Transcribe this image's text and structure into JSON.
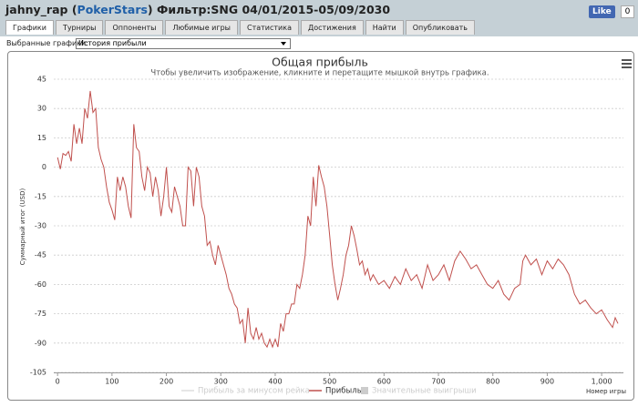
{
  "header": {
    "title_start": "jahny_rap (",
    "site": "PokerStars",
    "title_end": ") Фильтр:SNG 04/01/2015-05/09/2030",
    "like": "Like",
    "like_count": 0
  },
  "tabs": [
    "Графики",
    "Турниры",
    "Оппоненты",
    "Любимые игры",
    "Статистика",
    "Достижения",
    "Найти",
    "Опубликовать"
  ],
  "selector": {
    "label": "Выбранные графики:",
    "value": "История прибыли"
  },
  "chart_data": {
    "type": "line",
    "title": "Общая прибыль",
    "subtitle": "Чтобы увеличить изображение, кликните и перетащите мышкой внутрь графика.",
    "x_label": "Номер игры",
    "y_label": "Суммарный итог (USD)",
    "xlim": [
      -7,
      1040
    ],
    "ylim": [
      -105,
      45
    ],
    "xticks": [
      0,
      100,
      200,
      300,
      400,
      500,
      600,
      700,
      800,
      900,
      {
        "value": 1000,
        "label": "1,000"
      }
    ],
    "yticks": [
      -105,
      -90,
      -75,
      -60,
      -45,
      -30,
      -15,
      0,
      15,
      30,
      45
    ],
    "grid": true,
    "x": [
      0,
      5,
      10,
      15,
      20,
      25,
      30,
      35,
      40,
      45,
      50,
      55,
      60,
      65,
      70,
      75,
      80,
      85,
      90,
      95,
      100,
      105,
      110,
      115,
      120,
      125,
      130,
      135,
      140,
      145,
      150,
      155,
      160,
      165,
      170,
      175,
      180,
      185,
      190,
      195,
      200,
      205,
      210,
      215,
      220,
      225,
      230,
      235,
      240,
      245,
      250,
      255,
      260,
      265,
      270,
      275,
      280,
      285,
      290,
      295,
      300,
      305,
      310,
      315,
      320,
      325,
      330,
      335,
      340,
      345,
      350,
      355,
      360,
      365,
      370,
      375,
      380,
      385,
      390,
      395,
      400,
      405,
      410,
      415,
      420,
      425,
      430,
      435,
      440,
      445,
      450,
      455,
      460,
      465,
      470,
      475,
      480,
      485,
      490,
      495,
      500,
      505,
      510,
      515,
      520,
      525,
      530,
      535,
      540,
      545,
      550,
      555,
      560,
      565,
      570,
      575,
      580,
      590,
      600,
      610,
      620,
      630,
      640,
      650,
      660,
      670,
      680,
      690,
      700,
      710,
      720,
      730,
      740,
      750,
      760,
      770,
      780,
      790,
      800,
      810,
      820,
      830,
      840,
      850,
      855,
      860,
      870,
      880,
      890,
      900,
      910,
      920,
      930,
      940,
      950,
      960,
      970,
      980,
      990,
      1000,
      1010,
      1020,
      1025,
      1030
    ],
    "series": [
      {
        "name": "Прибыль",
        "color": "#c0504d",
        "values": [
          5,
          -1,
          7,
          6,
          8,
          3,
          22,
          12,
          20,
          12,
          30,
          25,
          39,
          28,
          30,
          10,
          4,
          0,
          -10,
          -18,
          -22,
          -27,
          -5,
          -12,
          -5,
          -10,
          -20,
          -26,
          22,
          10,
          8,
          -5,
          -12,
          0,
          -3,
          -15,
          -5,
          -12,
          -25,
          -15,
          0,
          -20,
          -23,
          -10,
          -15,
          -20,
          -30,
          -30,
          0,
          -2,
          -20,
          0,
          -5,
          -20,
          -25,
          -40,
          -38,
          -45,
          -50,
          -40,
          -45,
          -50,
          -55,
          -62,
          -65,
          -70,
          -72,
          -80,
          -78,
          -90,
          -72,
          -85,
          -88,
          -82,
          -88,
          -85,
          -90,
          -92,
          -88,
          -92,
          -88,
          -92,
          -80,
          -84,
          -75,
          -75,
          -70,
          -70,
          -60,
          -62,
          -55,
          -45,
          -25,
          -30,
          -5,
          -20,
          1,
          -5,
          -10,
          -20,
          -35,
          -50,
          -60,
          -68,
          -62,
          -55,
          -45,
          -40,
          -30,
          -35,
          -42,
          -50,
          -48,
          -55,
          -52,
          -58,
          -55,
          -60,
          -58,
          -62,
          -56,
          -60,
          -52,
          -58,
          -55,
          -62,
          -50,
          -58,
          -55,
          -50,
          -58,
          -48,
          -43,
          -47,
          -52,
          -50,
          -55,
          -60,
          -62,
          -58,
          -65,
          -68,
          -62,
          -60,
          -48,
          -45,
          -50,
          -47,
          -55,
          -48,
          -52,
          -47,
          -50,
          -55,
          -65,
          -70,
          -68,
          -72,
          -75,
          -73,
          -78,
          -82,
          -77,
          -80
        ]
      }
    ],
    "legend_hidden": "Прибыль за минусом рейка",
    "legend_marker": "Значительные выигрыши"
  }
}
